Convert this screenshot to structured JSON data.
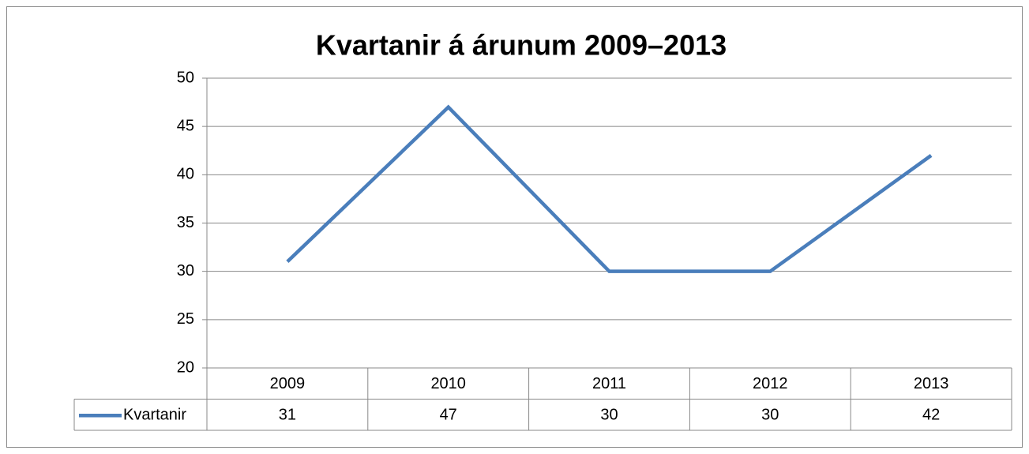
{
  "chart_data": {
    "type": "line",
    "title": "Kvartanir á árunum 2009–2013",
    "categories": [
      "2009",
      "2010",
      "2011",
      "2012",
      "2013"
    ],
    "series": [
      {
        "name": "Kvartanir",
        "color": "#4a7ebb",
        "values": [
          31,
          47,
          30,
          30,
          42
        ]
      }
    ],
    "ylim": [
      20,
      50
    ],
    "yticks": [
      20,
      25,
      30,
      35,
      40,
      45,
      50
    ],
    "grid": true,
    "legend": "bottom"
  }
}
